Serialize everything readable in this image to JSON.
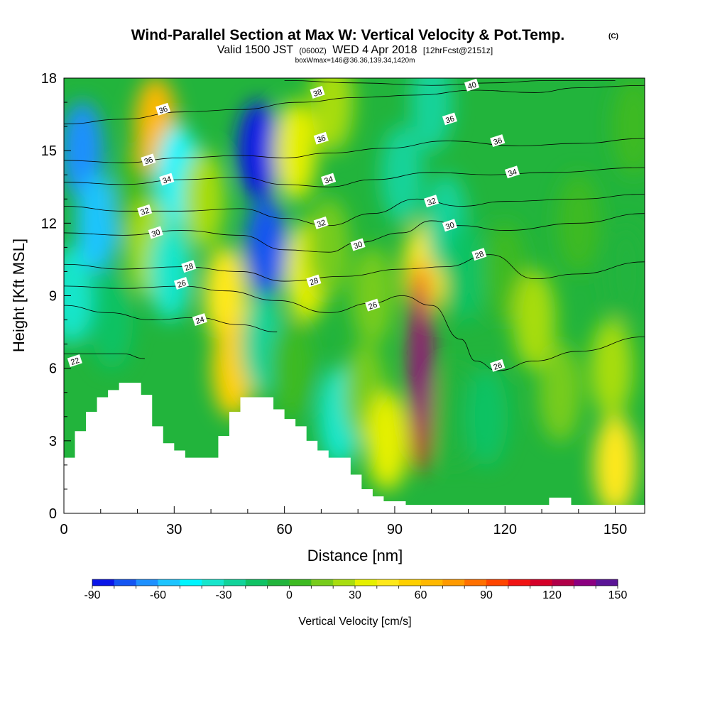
{
  "chart_data": {
    "type": "heatmap",
    "title": "Wind-Parallel Section at Max W: Vertical Velocity & Pot.Temp.",
    "title_mark": "(C)",
    "subtitle_parts": [
      "Valid 1500 JST",
      "(0600Z)",
      "WED 4 Apr 2018",
      "[12hrFcst@2151z]"
    ],
    "subtitle2": "boxWmax=146@36.36,139.34,1420m",
    "xlabel": "Distance [nm]",
    "ylabel": "Height [Kft MSL]",
    "xlim": [
      0,
      158
    ],
    "ylim": [
      0,
      18
    ],
    "xticks": [
      "0",
      "30",
      "60",
      "90",
      "120",
      "150"
    ],
    "yticks": [
      "0",
      "3",
      "6",
      "9",
      "12",
      "15",
      "18"
    ],
    "colorbar": {
      "label": "Vertical Velocity [cm/s]",
      "tick_labels": [
        "-90",
        "-60",
        "-30",
        "0",
        "30",
        "60",
        "90",
        "120",
        "150"
      ],
      "range": [
        -90,
        150
      ],
      "step": 10,
      "colors": [
        "#0a16e8",
        "#1455f2",
        "#1e90ff",
        "#1ec4ff",
        "#00f5ff",
        "#18e6cc",
        "#12d39a",
        "#10c264",
        "#22b43c",
        "#3dba22",
        "#77cc1c",
        "#a8dd10",
        "#e6f000",
        "#ffe81a",
        "#ffd000",
        "#ffb800",
        "#ff9a00",
        "#ff7000",
        "#ff4500",
        "#f01414",
        "#d40028",
        "#b00048",
        "#8b0080",
        "#5a1496"
      ]
    },
    "terrain_kft": [
      [
        0,
        2.3
      ],
      [
        3,
        2.3
      ],
      [
        3,
        3.4
      ],
      [
        6,
        3.4
      ],
      [
        6,
        4.2
      ],
      [
        9,
        4.2
      ],
      [
        9,
        4.8
      ],
      [
        12,
        4.8
      ],
      [
        12,
        5.1
      ],
      [
        15,
        5.1
      ],
      [
        15,
        5.4
      ],
      [
        21,
        5.4
      ],
      [
        21,
        4.9
      ],
      [
        24,
        4.9
      ],
      [
        24,
        3.6
      ],
      [
        27,
        3.6
      ],
      [
        27,
        2.9
      ],
      [
        30,
        2.9
      ],
      [
        30,
        2.6
      ],
      [
        33,
        2.6
      ],
      [
        33,
        2.3
      ],
      [
        42,
        2.3
      ],
      [
        42,
        3.2
      ],
      [
        45,
        3.2
      ],
      [
        45,
        4.2
      ],
      [
        48,
        4.2
      ],
      [
        48,
        4.8
      ],
      [
        57,
        4.8
      ],
      [
        57,
        4.3
      ],
      [
        60,
        4.3
      ],
      [
        60,
        3.9
      ],
      [
        63,
        3.9
      ],
      [
        63,
        3.6
      ],
      [
        66,
        3.6
      ],
      [
        66,
        3.0
      ],
      [
        69,
        3.0
      ],
      [
        69,
        2.6
      ],
      [
        72,
        2.6
      ],
      [
        72,
        2.3
      ],
      [
        78,
        2.3
      ],
      [
        78,
        1.6
      ],
      [
        81,
        1.6
      ],
      [
        81,
        1.0
      ],
      [
        84,
        1.0
      ],
      [
        84,
        0.7
      ],
      [
        87,
        0.7
      ],
      [
        87,
        0.5
      ],
      [
        93,
        0.5
      ],
      [
        93,
        0.35
      ],
      [
        132,
        0.35
      ],
      [
        132,
        0.65
      ],
      [
        138,
        0.65
      ],
      [
        138,
        0.35
      ],
      [
        158,
        0.35
      ]
    ],
    "w_field_cm_s": [
      {
        "x": 2,
        "z": 9,
        "w": -40
      },
      {
        "x": 5,
        "z": 15,
        "w": -70
      },
      {
        "x": 9,
        "z": 12,
        "w": -55
      },
      {
        "x": 13,
        "z": 8,
        "w": -20
      },
      {
        "x": 19,
        "z": 13,
        "w": 5
      },
      {
        "x": 25,
        "z": 16,
        "w": 65
      },
      {
        "x": 23,
        "z": 11,
        "w": 25
      },
      {
        "x": 29,
        "z": 10,
        "w": -35
      },
      {
        "x": 31,
        "z": 14,
        "w": -45
      },
      {
        "x": 38,
        "z": 13,
        "w": 20
      },
      {
        "x": 44,
        "z": 9,
        "w": 40
      },
      {
        "x": 46,
        "z": 6,
        "w": 50
      },
      {
        "x": 53,
        "z": 15,
        "w": -95
      },
      {
        "x": 55,
        "z": 11,
        "w": -75
      },
      {
        "x": 54,
        "z": 7,
        "w": -30
      },
      {
        "x": 63,
        "z": 15,
        "w": 35
      },
      {
        "x": 66,
        "z": 10,
        "w": 30
      },
      {
        "x": 62,
        "z": 6,
        "w": 5
      },
      {
        "x": 73,
        "z": 17,
        "w": 25
      },
      {
        "x": 72,
        "z": 11,
        "w": 15
      },
      {
        "x": 75,
        "z": 4,
        "w": -40
      },
      {
        "x": 82,
        "z": 5,
        "w": 10
      },
      {
        "x": 84,
        "z": 9,
        "w": 10
      },
      {
        "x": 88,
        "z": 3,
        "w": 30
      },
      {
        "x": 92,
        "z": 14,
        "w": -30
      },
      {
        "x": 97,
        "z": 6,
        "w": 148
      },
      {
        "x": 98,
        "z": 10,
        "w": 40
      },
      {
        "x": 104,
        "z": 12,
        "w": -30
      },
      {
        "x": 100,
        "z": 17,
        "w": -25
      },
      {
        "x": 109,
        "z": 10,
        "w": -15
      },
      {
        "x": 106,
        "z": 4,
        "w": -5
      },
      {
        "x": 115,
        "z": 4,
        "w": -15
      },
      {
        "x": 120,
        "z": 10,
        "w": 0
      },
      {
        "x": 128,
        "z": 8,
        "w": 25
      },
      {
        "x": 135,
        "z": 5,
        "w": 10
      },
      {
        "x": 140,
        "z": 12,
        "w": 5
      },
      {
        "x": 150,
        "z": 2,
        "w": 45
      },
      {
        "x": 149,
        "z": 6,
        "w": 25
      },
      {
        "x": 153,
        "z": 10,
        "w": -10
      },
      {
        "x": 155,
        "z": 16,
        "w": 5
      }
    ],
    "theta_contours": [
      {
        "label": "22",
        "points": [
          [
            0,
            6.6
          ],
          [
            8,
            6.6
          ],
          [
            16,
            6.6
          ],
          [
            22,
            6.4
          ]
        ]
      },
      {
        "label": "24",
        "points": [
          [
            0,
            8.6
          ],
          [
            12,
            8.3
          ],
          [
            24,
            8.0
          ],
          [
            36,
            8.1
          ],
          [
            48,
            7.8
          ],
          [
            58,
            7.5
          ]
        ]
      },
      {
        "label": "26",
        "points": [
          [
            0,
            9.4
          ],
          [
            16,
            9.3
          ],
          [
            32,
            9.4
          ],
          [
            44,
            9.2
          ],
          [
            58,
            8.8
          ],
          [
            72,
            8.3
          ],
          [
            84,
            8.7
          ],
          [
            92,
            9.0
          ],
          [
            100,
            8.6
          ],
          [
            108,
            7.2
          ],
          [
            112,
            6.3
          ],
          [
            118,
            5.9
          ],
          [
            128,
            6.3
          ],
          [
            140,
            6.7
          ],
          [
            158,
            7.3
          ]
        ]
      },
      {
        "label": "28",
        "points": [
          [
            0,
            10.3
          ],
          [
            16,
            10.1
          ],
          [
            32,
            10.2
          ],
          [
            48,
            10.0
          ],
          [
            60,
            9.6
          ],
          [
            76,
            9.8
          ],
          [
            92,
            10.1
          ],
          [
            104,
            10.2
          ],
          [
            116,
            10.7
          ],
          [
            128,
            9.7
          ],
          [
            140,
            9.9
          ],
          [
            158,
            10.4
          ]
        ]
      },
      {
        "label": "30",
        "points": [
          [
            0,
            11.6
          ],
          [
            16,
            11.5
          ],
          [
            32,
            11.7
          ],
          [
            48,
            11.5
          ],
          [
            60,
            10.9
          ],
          [
            72,
            10.8
          ],
          [
            80,
            11.2
          ],
          [
            92,
            11.6
          ],
          [
            100,
            12.1
          ],
          [
            108,
            11.9
          ],
          [
            120,
            11.7
          ],
          [
            140,
            12.0
          ],
          [
            158,
            12.4
          ]
        ]
      },
      {
        "label": "32",
        "points": [
          [
            0,
            12.7
          ],
          [
            16,
            12.5
          ],
          [
            32,
            12.5
          ],
          [
            48,
            12.6
          ],
          [
            60,
            12.2
          ],
          [
            72,
            11.9
          ],
          [
            84,
            12.4
          ],
          [
            96,
            13.0
          ],
          [
            108,
            12.7
          ],
          [
            120,
            12.9
          ],
          [
            140,
            13.0
          ],
          [
            158,
            13.2
          ]
        ]
      },
      {
        "label": "34",
        "points": [
          [
            0,
            13.7
          ],
          [
            16,
            13.6
          ],
          [
            32,
            13.8
          ],
          [
            48,
            13.9
          ],
          [
            60,
            13.6
          ],
          [
            72,
            13.5
          ],
          [
            84,
            13.8
          ],
          [
            100,
            14.1
          ],
          [
            116,
            14.0
          ],
          [
            132,
            14.1
          ],
          [
            158,
            14.3
          ]
        ]
      },
      {
        "label": "36",
        "points": [
          [
            0,
            14.6
          ],
          [
            16,
            14.5
          ],
          [
            32,
            14.7
          ],
          [
            48,
            14.8
          ],
          [
            60,
            14.7
          ],
          [
            72,
            14.9
          ],
          [
            88,
            15.1
          ],
          [
            104,
            15.4
          ],
          [
            124,
            15.2
          ],
          [
            140,
            15.3
          ],
          [
            158,
            15.5
          ]
        ]
      },
      {
        "label": "38",
        "points": [
          [
            0,
            16.1
          ],
          [
            16,
            16.3
          ],
          [
            32,
            16.6
          ],
          [
            48,
            16.7
          ],
          [
            64,
            17.0
          ],
          [
            80,
            17.2
          ],
          [
            96,
            17.3
          ],
          [
            112,
            17.5
          ],
          [
            128,
            17.4
          ],
          [
            140,
            17.6
          ],
          [
            158,
            17.7
          ]
        ]
      },
      {
        "label": "40",
        "points": [
          [
            60,
            17.9
          ],
          [
            80,
            17.8
          ],
          [
            100,
            17.7
          ],
          [
            116,
            17.8
          ],
          [
            132,
            17.9
          ],
          [
            150,
            17.9
          ]
        ]
      }
    ],
    "contour_labels": [
      {
        "text": "22",
        "x": 3,
        "z": 6.3
      },
      {
        "text": "24",
        "x": 37,
        "z": 8.0
      },
      {
        "text": "26",
        "x": 32,
        "z": 9.5
      },
      {
        "text": "26",
        "x": 84,
        "z": 8.6
      },
      {
        "text": "26",
        "x": 118,
        "z": 6.1
      },
      {
        "text": "28",
        "x": 34,
        "z": 10.2
      },
      {
        "text": "28",
        "x": 68,
        "z": 9.6
      },
      {
        "text": "28",
        "x": 113,
        "z": 10.7
      },
      {
        "text": "30",
        "x": 25,
        "z": 11.6
      },
      {
        "text": "30",
        "x": 80,
        "z": 11.1
      },
      {
        "text": "30",
        "x": 105,
        "z": 11.9
      },
      {
        "text": "32",
        "x": 22,
        "z": 12.5
      },
      {
        "text": "32",
        "x": 70,
        "z": 12.0
      },
      {
        "text": "32",
        "x": 100,
        "z": 12.9
      },
      {
        "text": "34",
        "x": 28,
        "z": 13.8
      },
      {
        "text": "34",
        "x": 72,
        "z": 13.8
      },
      {
        "text": "34",
        "x": 122,
        "z": 14.1
      },
      {
        "text": "36",
        "x": 23,
        "z": 14.6
      },
      {
        "text": "36",
        "x": 70,
        "z": 15.5
      },
      {
        "text": "36",
        "x": 105,
        "z": 16.3
      },
      {
        "text": "36",
        "x": 118,
        "z": 15.4
      },
      {
        "text": "36",
        "x": 27,
        "z": 16.7
      },
      {
        "text": "38",
        "x": 69,
        "z": 17.4
      },
      {
        "text": "40",
        "x": 111,
        "z": 17.7
      }
    ]
  }
}
